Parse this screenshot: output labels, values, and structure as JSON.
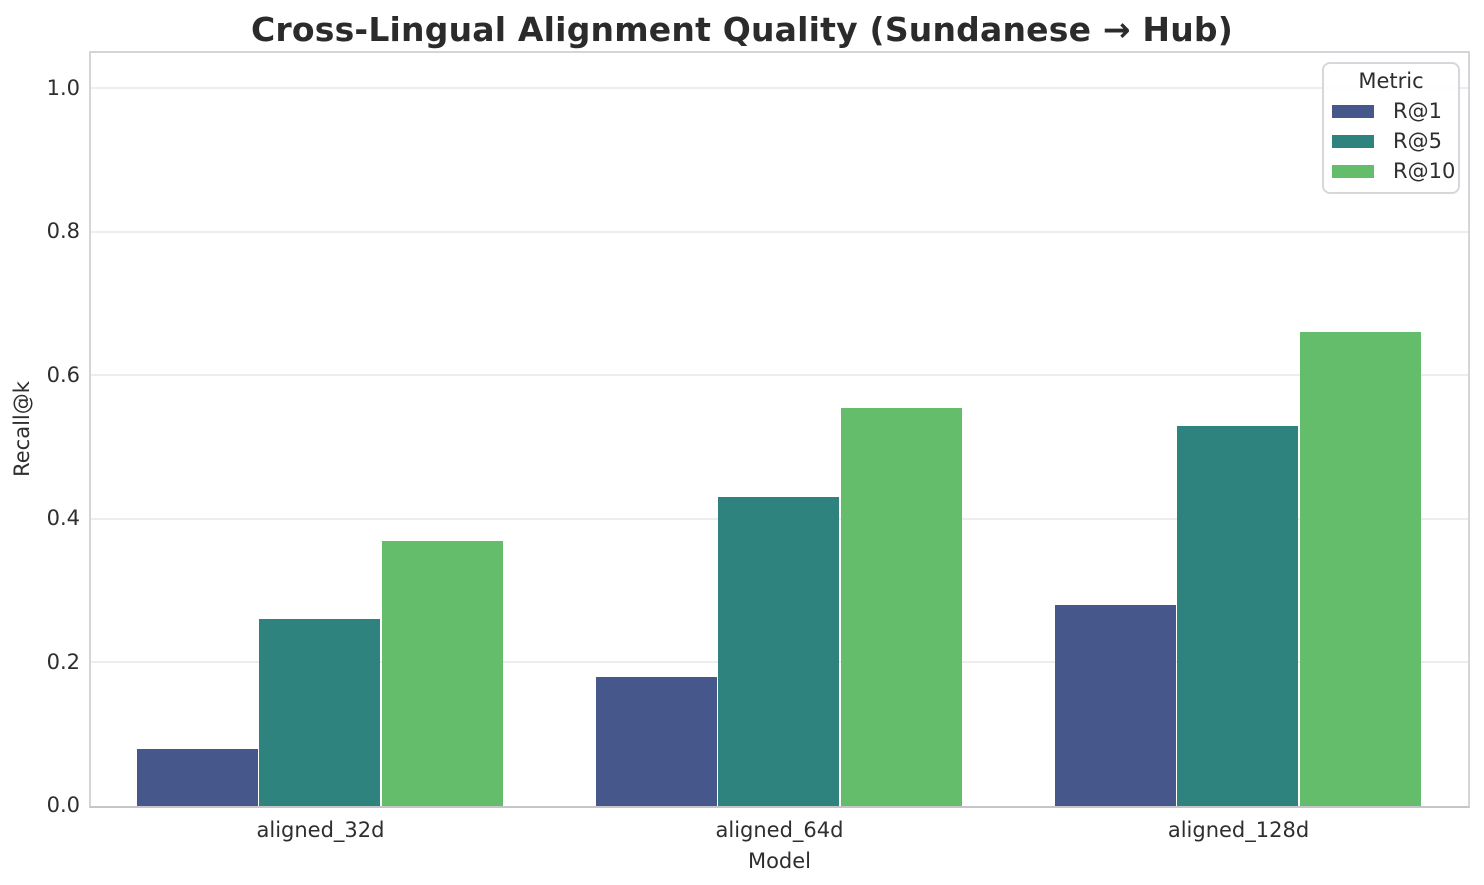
{
  "chart_data": {
    "type": "bar",
    "title": "Cross-Lingual Alignment Quality (Sundanese → Hub)",
    "xlabel": "Model",
    "ylabel": "Recall@k",
    "categories": [
      "aligned_32d",
      "aligned_64d",
      "aligned_128d"
    ],
    "series": [
      {
        "name": "R@1",
        "color": "#46578C",
        "values": [
          0.08,
          0.18,
          0.28
        ]
      },
      {
        "name": "R@5",
        "color": "#2E837E",
        "values": [
          0.26,
          0.43,
          0.53
        ]
      },
      {
        "name": "R@10",
        "color": "#64BD6A",
        "values": [
          0.37,
          0.555,
          0.66
        ]
      }
    ],
    "legend": {
      "title": "Metric",
      "position": "upper right"
    },
    "ylim": [
      0,
      1.05
    ],
    "yticks": [
      "0.0",
      "0.2",
      "0.4",
      "0.6",
      "0.8",
      "1.0"
    ],
    "grid": true
  }
}
